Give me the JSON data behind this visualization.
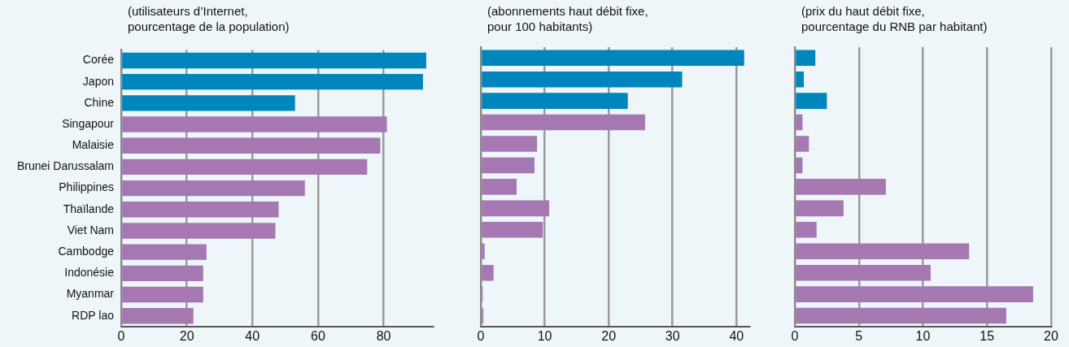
{
  "chart_data": [
    {
      "type": "bar",
      "orientation": "horizontal",
      "title": "(utilisateurs d’Internet,\npourcentage de la population)",
      "categories": [
        "Corée",
        "Japon",
        "Chine",
        "Singapour",
        "Malaisie",
        "Brunei Darussalam",
        "Philippines",
        "Thaïlande",
        "Viet Nam",
        "Cambodge",
        "Indonésie",
        "Myanmar",
        "RDP lao"
      ],
      "values": [
        93,
        92,
        53,
        81,
        79,
        75,
        56,
        48,
        47,
        26,
        25,
        25,
        22
      ],
      "colors": [
        "#0086bd",
        "#0086bd",
        "#0086bd",
        "#a678b2",
        "#a678b2",
        "#a678b2",
        "#a678b2",
        "#a678b2",
        "#a678b2",
        "#a678b2",
        "#a678b2",
        "#a678b2",
        "#a678b2"
      ],
      "xlim": [
        0,
        95
      ],
      "xticks": [
        0,
        20,
        40,
        60,
        80
      ],
      "grid": "x",
      "legend": false
    },
    {
      "type": "bar",
      "orientation": "horizontal",
      "title": "(abonnements haut débit fixe,\npour 100 habitants)",
      "categories": [
        null,
        null,
        null,
        null,
        null,
        null,
        null,
        null,
        null,
        null,
        null,
        null,
        null
      ],
      "values": [
        41.2,
        31.5,
        23,
        25.7,
        8.8,
        8.4,
        5.6,
        10.7,
        9.7,
        0.6,
        2,
        0.3,
        0.4
      ],
      "colors": [
        "#0086bd",
        "#0086bd",
        "#0086bd",
        "#a678b2",
        "#a678b2",
        "#a678b2",
        "#a678b2",
        "#a678b2",
        "#a678b2",
        "#a678b2",
        "#a678b2",
        "#a678b2",
        "#a678b2"
      ],
      "xlim": [
        0,
        42
      ],
      "xticks": [
        0,
        10,
        20,
        30,
        40
      ],
      "grid": "x",
      "legend": false,
      "tick_labels": "x"
    },
    {
      "type": "bar",
      "orientation": "horizontal",
      "title": "(prix du haut débit fixe,\npourcentage du RNB par habitant)",
      "categories": [
        null,
        null,
        null,
        null,
        null,
        null,
        null,
        null,
        null,
        null,
        null,
        null,
        null
      ],
      "values": [
        1.6,
        0.7,
        2.5,
        0.6,
        1.1,
        0.6,
        7.1,
        3.8,
        1.7,
        13.6,
        10.6,
        18.6,
        16.5
      ],
      "colors": [
        "#0086bd",
        "#0086bd",
        "#0086bd",
        "#a678b2",
        "#a678b2",
        "#a678b2",
        "#a678b2",
        "#a678b2",
        "#a678b2",
        "#a678b2",
        "#a678b2",
        "#a678b2",
        "#a678b2"
      ],
      "xlim": [
        0,
        20
      ],
      "xticks": [
        0,
        5,
        10,
        15,
        20
      ],
      "grid": "x",
      "legend": false,
      "tick_labels": "x"
    }
  ]
}
